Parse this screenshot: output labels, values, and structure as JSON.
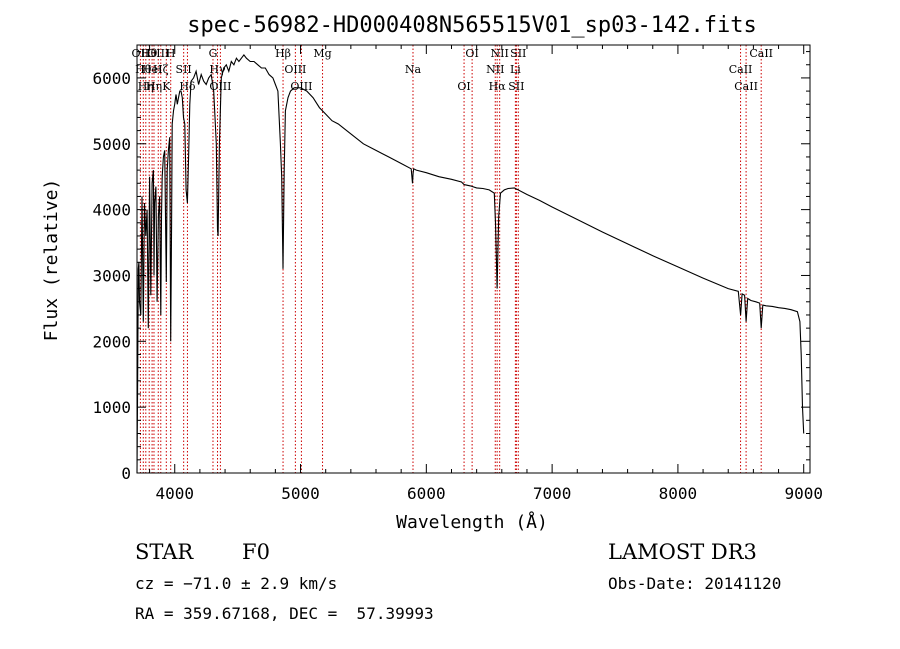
{
  "chart_data": {
    "type": "line",
    "title": "spec-56982-HD000408N565515V01_sp03-142.fits",
    "xlabel": "Wavelength (Å)",
    "ylabel": "Flux (relative)",
    "xlim": [
      3700,
      9050
    ],
    "ylim": [
      0,
      6500
    ],
    "xticks": [
      4000,
      5000,
      6000,
      7000,
      8000,
      9000
    ],
    "yticks": [
      0,
      1000,
      2000,
      3000,
      4000,
      5000,
      6000
    ],
    "grid": false,
    "line_color": "#000000",
    "marker_color": "#cc0000",
    "series": [
      {
        "name": "spectrum",
        "x": [
          3700,
          3705,
          3710,
          3715,
          3720,
          3730,
          3740,
          3750,
          3760,
          3770,
          3780,
          3790,
          3800,
          3810,
          3820,
          3830,
          3835,
          3840,
          3850,
          3860,
          3870,
          3880,
          3889,
          3895,
          3900,
          3910,
          3920,
          3933,
          3940,
          3950,
          3960,
          3968,
          3975,
          3980,
          3990,
          4000,
          4010,
          4020,
          4030,
          4040,
          4050,
          4060,
          4070,
          4080,
          4090,
          4101,
          4110,
          4120,
          4130,
          4150,
          4170,
          4190,
          4210,
          4230,
          4250,
          4270,
          4290,
          4310,
          4320,
          4330,
          4340,
          4345,
          4355,
          4370,
          4390,
          4410,
          4430,
          4450,
          4470,
          4490,
          4510,
          4530,
          4550,
          4570,
          4600,
          4630,
          4660,
          4690,
          4720,
          4750,
          4780,
          4800,
          4820,
          4840,
          4850,
          4861,
          4870,
          4880,
          4900,
          4920,
          4950,
          4980,
          5000,
          5050,
          5100,
          5150,
          5200,
          5250,
          5300,
          5400,
          5500,
          5600,
          5700,
          5800,
          5880,
          5890,
          5895,
          5900,
          5920,
          6000,
          6100,
          6200,
          6280,
          6300,
          6350,
          6400,
          6450,
          6500,
          6540,
          6550,
          6563,
          6575,
          6590,
          6620,
          6650,
          6700,
          6800,
          6900,
          7000,
          7200,
          7400,
          7600,
          7800,
          8000,
          8200,
          8400,
          8480,
          8498,
          8510,
          8530,
          8542,
          8555,
          8580,
          8620,
          8650,
          8662,
          8675,
          8700,
          8750,
          8800,
          8850,
          8900,
          8950,
          8970,
          8980,
          8990,
          9000
        ],
        "values": [
          0,
          1300,
          3100,
          3200,
          2600,
          2400,
          4200,
          2300,
          4100,
          3600,
          4000,
          2200,
          4500,
          2700,
          4400,
          4600,
          3000,
          4100,
          4350,
          2600,
          3900,
          4200,
          2400,
          3900,
          4500,
          4800,
          4900,
          2900,
          4600,
          4900,
          5100,
          2000,
          3800,
          5300,
          5500,
          5600,
          5750,
          5600,
          5700,
          5800,
          5800,
          5700,
          5400,
          5300,
          4300,
          4100,
          4800,
          5600,
          5950,
          6000,
          6100,
          5900,
          6050,
          5950,
          5900,
          6000,
          6050,
          5800,
          5400,
          5000,
          3700,
          3600,
          5000,
          6000,
          6150,
          6200,
          6100,
          6250,
          6200,
          6300,
          6250,
          6300,
          6350,
          6300,
          6250,
          6250,
          6200,
          6150,
          6150,
          6050,
          6000,
          5900,
          5800,
          5000,
          4500,
          3100,
          4600,
          5500,
          5700,
          5800,
          5850,
          5850,
          5850,
          5800,
          5700,
          5550,
          5450,
          5350,
          5300,
          5150,
          5000,
          4900,
          4800,
          4700,
          4620,
          4400,
          4550,
          4620,
          4600,
          4560,
          4500,
          4460,
          4420,
          4380,
          4360,
          4330,
          4320,
          4300,
          4250,
          3800,
          2800,
          3900,
          4250,
          4300,
          4320,
          4330,
          4230,
          4140,
          4040,
          3850,
          3660,
          3480,
          3300,
          3130,
          2960,
          2800,
          2760,
          2400,
          2720,
          2700,
          2300,
          2650,
          2620,
          2600,
          2580,
          2200,
          2550,
          2540,
          2530,
          2510,
          2500,
          2480,
          2450,
          2300,
          1800,
          1000,
          600
        ]
      }
    ],
    "line_markers": [
      {
        "wavelength": 3727,
        "label": "OII"
      },
      {
        "wavelength": 3750,
        "label": "Hθ"
      },
      {
        "wavelength": 3770,
        "label": "Hη"
      },
      {
        "wavelength": 3797,
        "label": "Hθ"
      },
      {
        "wavelength": 3820,
        "label": "HeI"
      },
      {
        "wavelength": 3835,
        "label": "Hη"
      },
      {
        "wavelength": 3869,
        "label": "OIII"
      },
      {
        "wavelength": 3889,
        "label": "Hζ"
      },
      {
        "wavelength": 3933,
        "label": "K"
      },
      {
        "wavelength": 3968,
        "label": "H"
      },
      {
        "wavelength": 4071,
        "label": "SII"
      },
      {
        "wavelength": 4101,
        "label": "Hδ"
      },
      {
        "wavelength": 4304,
        "label": "G"
      },
      {
        "wavelength": 4340,
        "label": "Hγ"
      },
      {
        "wavelength": 4363,
        "label": "OIII"
      },
      {
        "wavelength": 4861,
        "label": "Hβ"
      },
      {
        "wavelength": 4959,
        "label": "OIII"
      },
      {
        "wavelength": 5007,
        "label": "OIII"
      },
      {
        "wavelength": 5175,
        "label": "Mg"
      },
      {
        "wavelength": 5894,
        "label": "Na"
      },
      {
        "wavelength": 6300,
        "label": "OI"
      },
      {
        "wavelength": 6364,
        "label": "OI"
      },
      {
        "wavelength": 6548,
        "label": "NII"
      },
      {
        "wavelength": 6563,
        "label": "Hα"
      },
      {
        "wavelength": 6583,
        "label": "NII"
      },
      {
        "wavelength": 6708,
        "label": "Li"
      },
      {
        "wavelength": 6716,
        "label": "SII"
      },
      {
        "wavelength": 6731,
        "label": "SII"
      },
      {
        "wavelength": 8498,
        "label": "CaII"
      },
      {
        "wavelength": 8542,
        "label": "CaII"
      },
      {
        "wavelength": 8662,
        "label": "CaII"
      }
    ]
  },
  "info": {
    "object_class": "STAR",
    "subclass": "F0",
    "survey": "LAMOST DR3",
    "redshift": "cz = −71.0 ± 2.9 km/s",
    "obs_date": "Obs-Date: 20141120",
    "coords": "RA = 359.67168, DEC =  57.39993"
  }
}
